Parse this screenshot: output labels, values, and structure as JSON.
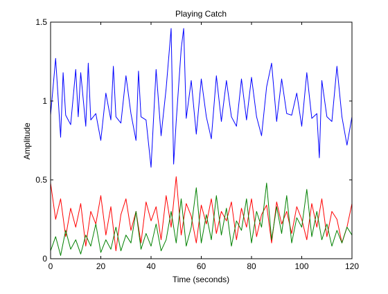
{
  "chart_data": {
    "type": "line",
    "title": "Playing Catch",
    "xlabel": "Time (seconds)",
    "ylabel": "Amplitude",
    "xlim": [
      0,
      120
    ],
    "ylim": [
      0,
      1.5
    ],
    "xticks": [
      0,
      20,
      40,
      60,
      80,
      100,
      120
    ],
    "yticks": [
      0,
      0.5,
      1,
      1.5
    ],
    "xtick_labels": [
      "0",
      "20",
      "40",
      "60",
      "80",
      "100",
      "120"
    ],
    "ytick_labels": [
      "0",
      "0.5",
      "1",
      "1.5"
    ],
    "grid": false,
    "legend": "none",
    "series": [
      {
        "color": "#0000ff",
        "x": [
          0,
          2,
          4,
          5,
          6,
          8,
          10,
          11,
          12,
          14,
          15,
          16,
          18,
          20,
          22,
          24,
          25,
          26,
          28,
          30,
          32,
          34,
          35,
          36,
          38,
          40,
          42,
          44,
          46,
          48,
          49,
          50,
          52,
          53,
          54,
          56,
          58,
          60,
          62,
          64,
          66,
          68,
          70,
          72,
          74,
          76,
          78,
          80,
          82,
          84,
          86,
          88,
          90,
          92,
          94,
          96,
          98,
          100,
          102,
          104,
          106,
          107,
          108,
          110,
          112,
          114,
          116,
          118,
          120
        ],
        "y": [
          0.91,
          1.27,
          0.77,
          1.18,
          0.91,
          0.85,
          1.2,
          0.9,
          1.18,
          0.84,
          1.24,
          0.88,
          0.92,
          0.75,
          1.05,
          0.88,
          1.22,
          0.9,
          0.86,
          1.16,
          0.92,
          0.75,
          1.19,
          0.9,
          0.88,
          0.58,
          1.2,
          0.78,
          1.08,
          1.46,
          0.6,
          0.87,
          1.33,
          1.46,
          0.89,
          1.13,
          0.79,
          1.14,
          0.9,
          0.76,
          1.16,
          0.87,
          1.13,
          0.9,
          0.84,
          1.14,
          0.88,
          1.15,
          0.9,
          0.78,
          1.09,
          1.24,
          0.87,
          1.14,
          0.92,
          0.91,
          1.05,
          0.84,
          1.18,
          0.89,
          0.92,
          0.64,
          1.13,
          0.9,
          0.87,
          1.22,
          0.9,
          0.72,
          0.9
        ]
      },
      {
        "color": "#ff0000",
        "x": [
          0,
          2,
          4,
          6,
          8,
          10,
          12,
          14,
          16,
          18,
          20,
          22,
          24,
          26,
          28,
          30,
          32,
          34,
          36,
          38,
          40,
          42,
          44,
          46,
          48,
          50,
          52,
          54,
          56,
          58,
          60,
          62,
          64,
          66,
          68,
          70,
          72,
          74,
          76,
          78,
          80,
          82,
          84,
          86,
          88,
          90,
          92,
          94,
          96,
          98,
          100,
          102,
          104,
          106,
          108,
          110,
          112,
          114,
          116,
          118,
          120
        ],
        "y": [
          0.48,
          0.25,
          0.38,
          0.14,
          0.32,
          0.2,
          0.35,
          0.08,
          0.3,
          0.22,
          0.4,
          0.15,
          0.33,
          0.05,
          0.28,
          0.38,
          0.18,
          0.3,
          0.1,
          0.36,
          0.24,
          0.33,
          0.12,
          0.4,
          0.2,
          0.52,
          0.15,
          0.35,
          0.27,
          0.1,
          0.34,
          0.22,
          0.38,
          0.16,
          0.3,
          0.24,
          0.36,
          0.12,
          0.32,
          0.2,
          0.38,
          0.14,
          0.28,
          0.34,
          0.1,
          0.36,
          0.22,
          0.3,
          0.16,
          0.33,
          0.25,
          0.12,
          0.35,
          0.2,
          0.38,
          0.14,
          0.3,
          0.25,
          0.1,
          0.2,
          0.35
        ]
      },
      {
        "color": "#008000",
        "x": [
          0,
          2,
          4,
          6,
          8,
          10,
          12,
          14,
          16,
          18,
          20,
          22,
          24,
          26,
          28,
          30,
          32,
          34,
          36,
          38,
          40,
          42,
          44,
          46,
          48,
          50,
          52,
          54,
          56,
          58,
          60,
          62,
          64,
          66,
          68,
          70,
          72,
          74,
          76,
          78,
          80,
          82,
          84,
          86,
          88,
          90,
          92,
          94,
          96,
          98,
          100,
          102,
          104,
          106,
          108,
          110,
          112,
          114,
          116,
          118,
          120
        ],
        "y": [
          0.05,
          0.14,
          0.02,
          0.18,
          0.06,
          0.12,
          0.03,
          0.15,
          0.08,
          0.22,
          0.04,
          0.12,
          0.06,
          0.2,
          0.05,
          0.15,
          0.1,
          0.3,
          0.06,
          0.16,
          0.08,
          0.22,
          0.05,
          0.12,
          0.3,
          0.1,
          0.38,
          0.08,
          0.2,
          0.45,
          0.1,
          0.28,
          0.12,
          0.4,
          0.15,
          0.32,
          0.08,
          0.24,
          0.18,
          0.38,
          0.1,
          0.3,
          0.2,
          0.48,
          0.12,
          0.33,
          0.16,
          0.4,
          0.1,
          0.26,
          0.2,
          0.44,
          0.14,
          0.3,
          0.12,
          0.22,
          0.08,
          0.18,
          0.1,
          0.2,
          0.15
        ]
      }
    ]
  }
}
